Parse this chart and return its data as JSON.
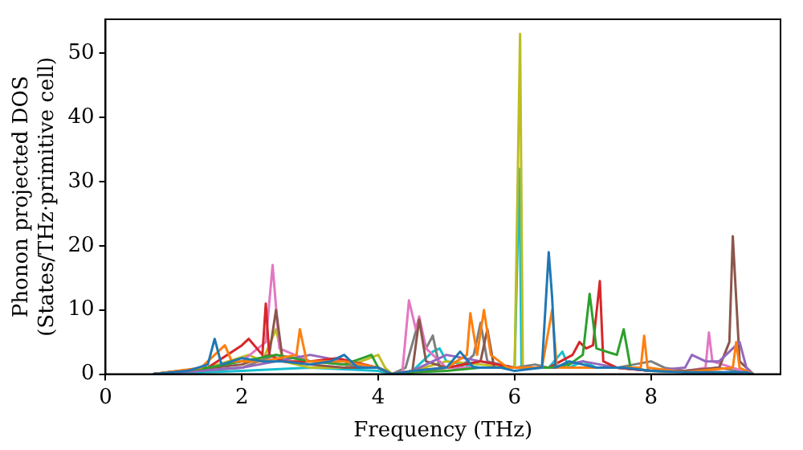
{
  "chart_data": {
    "type": "line",
    "xlabel": "Frequency (THz)",
    "ylabel": "Phonon projected DOS\n(States/THz·primitive cell)",
    "xlim": [
      0,
      9.9
    ],
    "xticks": [
      0,
      2,
      4,
      6,
      8
    ],
    "ylim": [
      0,
      55.3
    ],
    "yticks": [
      0,
      10,
      20,
      30,
      40,
      50
    ],
    "grid": false,
    "legend": false,
    "marker": "none",
    "line_style": "solid",
    "series": [
      {
        "color": "#1f77b4",
        "x": [
          0.7,
          1.2,
          1.5,
          1.6,
          1.7,
          2.0,
          2.3,
          2.6,
          3.0,
          3.3,
          3.5,
          3.7,
          4.0,
          4.2,
          4.5,
          5.0,
          5.2,
          5.4,
          5.8,
          6.0,
          6.4,
          6.5,
          6.55,
          6.6,
          6.8,
          7.2,
          7.6,
          8.0,
          8.5,
          9.0,
          9.4,
          9.5
        ],
        "values": [
          0,
          0.5,
          1.5,
          5.5,
          1.5,
          2.5,
          2,
          2,
          1.5,
          2,
          3,
          1,
          1,
          0,
          0.5,
          1,
          3.5,
          1,
          1,
          0.5,
          1,
          19,
          12,
          1,
          2,
          1,
          1,
          0.5,
          0.3,
          0.3,
          0.3,
          0
        ]
      },
      {
        "color": "#ff7f0e",
        "x": [
          0.7,
          1.4,
          1.75,
          1.85,
          2.3,
          2.8,
          2.85,
          2.95,
          3.5,
          4.0,
          4.2,
          4.5,
          5.0,
          5.3,
          5.35,
          5.45,
          5.55,
          5.65,
          5.9,
          6.4,
          6.55,
          6.62,
          7.0,
          7.85,
          7.9,
          7.95,
          8.5,
          9.2,
          9.25,
          9.3,
          9.5
        ],
        "values": [
          0,
          1,
          4.5,
          2,
          2,
          3,
          7,
          2,
          2,
          1,
          0,
          0.5,
          1,
          3,
          9.5,
          3,
          10,
          3,
          1,
          1,
          10,
          1,
          1,
          1,
          6,
          1,
          0.3,
          1,
          5,
          1,
          0
        ]
      },
      {
        "color": "#2ca02c",
        "x": [
          0.7,
          1.5,
          2.0,
          2.5,
          3.0,
          3.5,
          3.9,
          4.0,
          4.2,
          4.5,
          5.0,
          5.5,
          6.0,
          6.5,
          6.8,
          7.0,
          7.1,
          7.2,
          7.5,
          7.6,
          7.7,
          8.0,
          9.0,
          9.5
        ],
        "values": [
          0,
          1,
          2,
          3,
          2,
          1.5,
          3,
          1,
          0,
          0.3,
          0.5,
          1,
          1,
          1,
          1.5,
          3,
          12.5,
          4,
          3,
          7,
          1,
          0.5,
          0.2,
          0
        ]
      },
      {
        "color": "#d62728",
        "x": [
          0.7,
          1.5,
          2.0,
          2.1,
          2.3,
          2.35,
          2.4,
          2.6,
          3.0,
          3.4,
          4.0,
          4.2,
          4.5,
          5.0,
          5.5,
          6.0,
          6.5,
          6.85,
          6.95,
          7.05,
          7.15,
          7.25,
          7.3,
          7.5,
          8.0,
          9.0,
          9.5
        ],
        "values": [
          0,
          1,
          4.5,
          5.5,
          3,
          11,
          3,
          2,
          2,
          2.5,
          1,
          0,
          0.3,
          1,
          2,
          1,
          1,
          3,
          5,
          4,
          4.5,
          14.5,
          2,
          1,
          0.5,
          0.3,
          0
        ]
      },
      {
        "color": "#9467bd",
        "x": [
          0.7,
          2.0,
          2.5,
          3.0,
          3.5,
          4.0,
          4.2,
          4.5,
          5.0,
          5.5,
          6.0,
          6.5,
          7.0,
          7.5,
          8.0,
          8.5,
          8.6,
          8.8,
          9.0,
          9.3,
          9.4,
          9.5
        ],
        "values": [
          0,
          1,
          2,
          3,
          2,
          1,
          0,
          0.5,
          3,
          2,
          1,
          1,
          2,
          1,
          0.5,
          1,
          3,
          2,
          2,
          5,
          1,
          0
        ]
      },
      {
        "color": "#8c564b",
        "x": [
          0.7,
          2.0,
          2.4,
          2.5,
          2.6,
          3.0,
          3.5,
          4.0,
          4.2,
          4.5,
          4.6,
          4.7,
          5.0,
          5.5,
          5.6,
          5.7,
          6.0,
          6.5,
          7.0,
          7.5,
          8.0,
          8.5,
          9.0,
          9.15,
          9.2,
          9.3,
          9.5
        ],
        "values": [
          0,
          1.5,
          3,
          10,
          2,
          1.5,
          1,
          1,
          0,
          0.5,
          8.5,
          2,
          1,
          2,
          7,
          1,
          1,
          1,
          1,
          1,
          0.5,
          0.5,
          1,
          5,
          21.5,
          2,
          0
        ]
      },
      {
        "color": "#e377c2",
        "x": [
          0.7,
          1.5,
          2.0,
          2.35,
          2.45,
          2.55,
          3.0,
          3.5,
          4.0,
          4.2,
          4.35,
          4.45,
          4.55,
          4.6,
          4.7,
          5.0,
          5.5,
          6.0,
          6.5,
          7.0,
          7.5,
          8.0,
          8.5,
          8.8,
          8.85,
          8.9,
          9.2,
          9.5
        ],
        "values": [
          0,
          1,
          2,
          5,
          17,
          4,
          2,
          2,
          1,
          0,
          0,
          11.5,
          7,
          9,
          4,
          1,
          1,
          1,
          1,
          1,
          1,
          0.5,
          0.5,
          1,
          6.5,
          2,
          1,
          0
        ]
      },
      {
        "color": "#7f7f7f",
        "x": [
          0.7,
          2.0,
          2.5,
          3.0,
          3.5,
          4.0,
          4.2,
          4.4,
          4.6,
          4.7,
          4.8,
          4.9,
          5.2,
          5.4,
          5.5,
          5.6,
          6.0,
          6.3,
          6.5,
          7.0,
          7.5,
          8.0,
          8.2,
          8.5,
          9.0,
          9.5
        ],
        "values": [
          0,
          1,
          3,
          2,
          1.5,
          1,
          0,
          1,
          8.5,
          4,
          6,
          1,
          1,
          3,
          8,
          2,
          1,
          1.5,
          1,
          1,
          1,
          2,
          1,
          0.5,
          1,
          0
        ]
      },
      {
        "color": "#bcbd22",
        "x": [
          0.7,
          1.5,
          2.1,
          2.3,
          2.5,
          2.6,
          3.0,
          3.5,
          4.0,
          4.1,
          4.2,
          4.5,
          5.0,
          5.5,
          6.0,
          6.08,
          6.12,
          6.2,
          6.5
        ],
        "values": [
          0,
          1,
          3,
          2,
          7,
          2,
          1,
          1,
          3,
          1,
          0,
          0.5,
          2,
          1.5,
          1,
          53,
          1,
          1,
          1
        ]
      },
      {
        "color": "#17becf",
        "x": [
          0.7,
          2.0,
          3.0,
          4.0,
          4.2,
          4.5,
          4.8,
          4.9,
          5.0,
          5.5,
          6.0,
          6.07,
          6.1,
          6.15,
          6.5,
          6.7,
          6.8,
          7.0,
          7.2,
          7.5
        ],
        "values": [
          0,
          0.5,
          1,
          0.5,
          0,
          0.5,
          3.5,
          4,
          2,
          1,
          1,
          32,
          1,
          1,
          1,
          3.5,
          1,
          2,
          1,
          1
        ]
      }
    ]
  }
}
